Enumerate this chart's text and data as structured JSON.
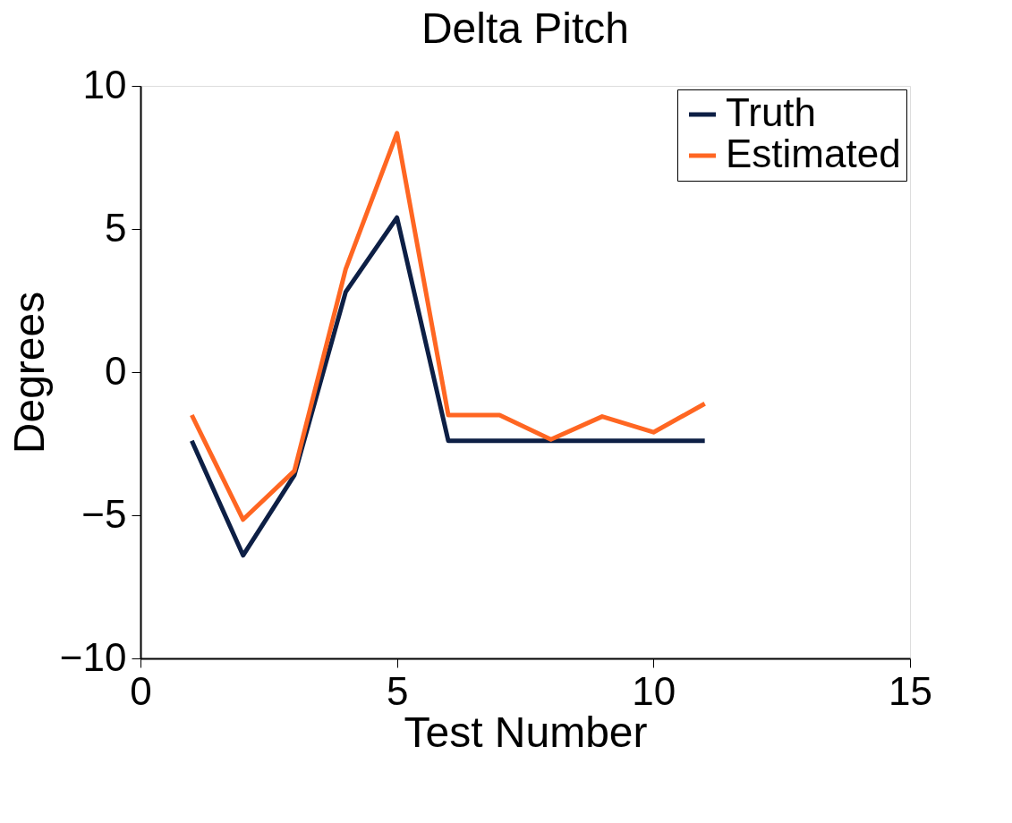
{
  "chart_data": {
    "type": "line",
    "title": "Delta Pitch",
    "xlabel": "Test Number",
    "ylabel": "Degrees",
    "x": [
      1,
      2,
      3,
      4,
      5,
      6,
      7,
      8,
      9,
      10,
      11
    ],
    "series": [
      {
        "name": "Truth",
        "color": "#0d1f45",
        "values": [
          -2.4,
          -6.4,
          -3.6,
          2.8,
          5.4,
          -2.4,
          -2.4,
          -2.4,
          -2.4,
          -2.4,
          -2.4
        ]
      },
      {
        "name": "Estimated",
        "color": "#ff6622",
        "values": [
          -1.5,
          -5.15,
          -3.45,
          3.6,
          8.35,
          -1.5,
          -1.5,
          -2.35,
          -1.55,
          -2.1,
          -1.1
        ]
      }
    ],
    "xlim": [
      0,
      15
    ],
    "xticks": [
      0,
      5,
      10,
      15
    ],
    "ylim": [
      -10,
      10
    ],
    "yticks": [
      -10,
      -5,
      0,
      5,
      10
    ],
    "grid": false,
    "legend": "top right",
    "line_style": "solid",
    "marker": "none"
  }
}
